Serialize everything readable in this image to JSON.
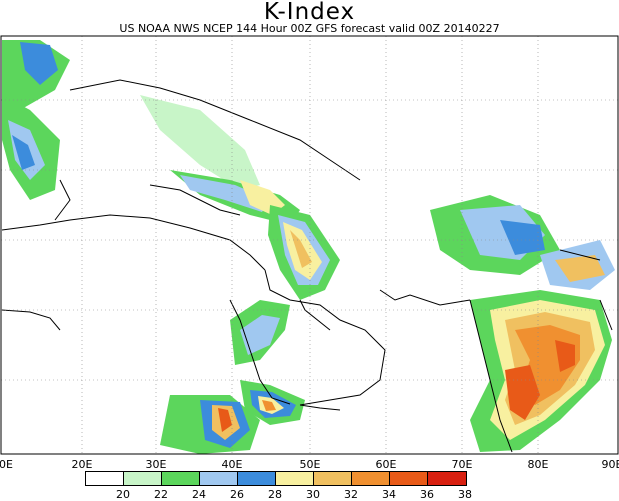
{
  "title": "K-Index",
  "subtitle": "US NOAA NWS NCEP 144 Hour 00Z GFS forecast valid 00Z 20140227",
  "lon_labels": [
    "0E",
    "20E",
    "30E",
    "40E",
    "50E",
    "60E",
    "70E",
    "80E",
    "90E"
  ],
  "legend": {
    "labels": [
      "20",
      "22",
      "24",
      "26",
      "28",
      "30",
      "32",
      "34",
      "36",
      "38"
    ],
    "colors": [
      "#ffffff",
      "#c8f5c8",
      "#5cd65c",
      "#a0c8f0",
      "#3c8cdc",
      "#f8f0a0",
      "#f0c060",
      "#f09030",
      "#e85a18",
      "#d82010"
    ]
  }
}
